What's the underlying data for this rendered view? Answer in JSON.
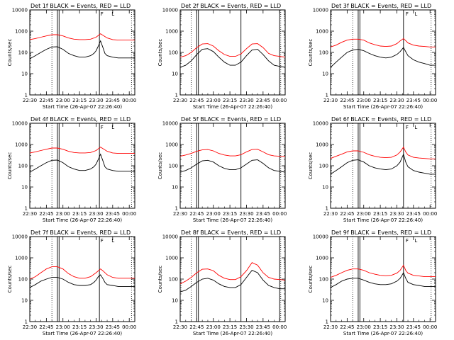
{
  "chart_data": {
    "type": "line",
    "layout": "3x3",
    "ylabel": "Counts/sec",
    "xlabel": "Start Time (26-Apr-07 22:26:40)",
    "x_tick_labels": [
      "22:30",
      "22:45",
      "23:00",
      "23:15",
      "23:30",
      "23:45",
      "00:00"
    ],
    "x_tick_minutes": [
      0,
      15,
      30,
      45,
      60,
      75,
      90
    ],
    "xlim_minutes": [
      0,
      95
    ],
    "y_tick_labels": [
      "1",
      "10",
      "100",
      "1000",
      "10000"
    ],
    "ylim": [
      1,
      10000
    ],
    "yscale": "log",
    "marker_labels": [
      "F",
      "L"
    ],
    "panels": [
      {
        "title": "Det 1f BLACK = Events, RED = LLD",
        "dotted_x": [
          20,
          92
        ],
        "solid_x": [
          25,
          26.5,
          63
        ],
        "f_x": 64,
        "l_x": 74,
        "series": [
          {
            "name": "Events",
            "color": "#000000",
            "x": [
              0,
              5,
              10,
              15,
              20,
              25,
              30,
              35,
              40,
              45,
              50,
              55,
              58,
              60,
              62,
              64,
              66,
              68,
              70,
              75,
              80,
              85,
              90,
              95
            ],
            "y": [
              50,
              70,
              100,
              140,
              180,
              185,
              140,
              90,
              70,
              60,
              60,
              70,
              90,
              120,
              200,
              350,
              180,
              90,
              70,
              60,
              55,
              55,
              55,
              55
            ]
          },
          {
            "name": "LLD",
            "color": "#ff0000",
            "x": [
              0,
              5,
              10,
              15,
              20,
              25,
              30,
              35,
              40,
              45,
              50,
              55,
              60,
              64,
              66,
              70,
              75,
              80,
              85,
              90,
              95
            ],
            "y": [
              400,
              450,
              520,
              600,
              680,
              680,
              600,
              480,
              420,
              400,
              400,
              420,
              520,
              750,
              650,
              480,
              400,
              380,
              380,
              380,
              380
            ]
          }
        ]
      },
      {
        "title": "Det 2f BLACK = Events, RED = LLD",
        "dotted_x": [
          10,
          91
        ],
        "solid_x": [
          15,
          16.5,
          55,
          90
        ],
        "f_x": null,
        "l_x": null,
        "series": [
          {
            "name": "Events",
            "color": "#000000",
            "x": [
              0,
              5,
              10,
              15,
              20,
              25,
              30,
              35,
              40,
              45,
              50,
              55,
              60,
              65,
              70,
              75,
              80,
              85,
              90,
              95
            ],
            "y": [
              20,
              25,
              40,
              80,
              140,
              150,
              110,
              60,
              35,
              25,
              25,
              35,
              70,
              130,
              140,
              80,
              40,
              25,
              22,
              20
            ]
          },
          {
            "name": "LLD",
            "color": "#ff0000",
            "x": [
              0,
              5,
              10,
              15,
              20,
              25,
              30,
              35,
              40,
              45,
              50,
              55,
              60,
              65,
              70,
              75,
              80,
              85,
              90,
              95
            ],
            "y": [
              60,
              70,
              100,
              170,
              250,
              260,
              200,
              120,
              80,
              65,
              65,
              85,
              150,
              250,
              260,
              170,
              90,
              70,
              65,
              60
            ]
          }
        ]
      },
      {
        "title": "Det 3f BLACK = Events, RED = LLD",
        "dotted_x": [
          20,
          91
        ],
        "solid_x": [
          25,
          26.5,
          66
        ],
        "f_x": 68,
        "l_x": 76,
        "series": [
          {
            "name": "Events",
            "color": "#000000",
            "x": [
              0,
              5,
              10,
              15,
              20,
              25,
              30,
              35,
              40,
              45,
              50,
              55,
              60,
              63,
              66,
              68,
              70,
              75,
              80,
              85,
              90,
              95
            ],
            "y": [
              20,
              35,
              60,
              100,
              130,
              140,
              120,
              90,
              70,
              60,
              55,
              60,
              80,
              110,
              170,
              110,
              70,
              45,
              35,
              30,
              25,
              25
            ]
          },
          {
            "name": "LLD",
            "color": "#ff0000",
            "x": [
              0,
              5,
              10,
              15,
              20,
              25,
              30,
              35,
              40,
              45,
              50,
              55,
              60,
              63,
              66,
              68,
              70,
              75,
              80,
              85,
              90,
              95
            ],
            "y": [
              180,
              220,
              300,
              380,
              420,
              420,
              380,
              280,
              230,
              200,
              190,
              200,
              260,
              350,
              450,
              360,
              280,
              220,
              200,
              190,
              180,
              180
            ]
          }
        ]
      },
      {
        "title": "Det 4f BLACK = Events, RED = LLD",
        "dotted_x": [
          20,
          92
        ],
        "solid_x": [
          25,
          26.5,
          63
        ],
        "f_x": 64,
        "l_x": 74,
        "series": [
          {
            "name": "Events",
            "color": "#000000",
            "x": [
              0,
              5,
              10,
              15,
              20,
              25,
              30,
              35,
              40,
              45,
              50,
              55,
              58,
              60,
              62,
              64,
              66,
              68,
              70,
              75,
              80,
              85,
              90,
              95
            ],
            "y": [
              50,
              70,
              100,
              140,
              180,
              185,
              140,
              90,
              70,
              60,
              60,
              70,
              90,
              120,
              200,
              350,
              180,
              90,
              70,
              60,
              55,
              55,
              55,
              55
            ]
          },
          {
            "name": "LLD",
            "color": "#ff0000",
            "x": [
              0,
              5,
              10,
              15,
              20,
              25,
              30,
              35,
              40,
              45,
              50,
              55,
              60,
              64,
              66,
              70,
              75,
              80,
              85,
              90,
              95
            ],
            "y": [
              400,
              450,
              520,
              600,
              680,
              680,
              600,
              480,
              420,
              400,
              400,
              420,
              520,
              750,
              650,
              480,
              400,
              380,
              380,
              380,
              380
            ]
          }
        ]
      },
      {
        "title": "Det 5f BLACK = Events, RED = LLD",
        "dotted_x": [
          10,
          91
        ],
        "solid_x": [
          15,
          16.5,
          55,
          90
        ],
        "f_x": null,
        "l_x": null,
        "series": [
          {
            "name": "Events",
            "color": "#000000",
            "x": [
              0,
              5,
              10,
              15,
              20,
              25,
              30,
              35,
              40,
              45,
              50,
              55,
              60,
              65,
              70,
              75,
              80,
              85,
              90,
              95
            ],
            "y": [
              50,
              60,
              80,
              120,
              170,
              180,
              150,
              100,
              75,
              65,
              65,
              80,
              120,
              180,
              190,
              130,
              80,
              60,
              55,
              50
            ]
          },
          {
            "name": "LLD",
            "color": "#ff0000",
            "x": [
              0,
              5,
              10,
              15,
              20,
              25,
              30,
              35,
              40,
              45,
              50,
              55,
              60,
              65,
              70,
              75,
              80,
              85,
              90,
              95
            ],
            "y": [
              280,
              320,
              380,
              480,
              560,
              580,
              500,
              380,
              320,
              290,
              290,
              330,
              450,
              580,
              600,
              450,
              330,
              290,
              280,
              270
            ]
          }
        ]
      },
      {
        "title": "Det 6f BLACK = Events, RED = LLD",
        "dotted_x": [
          20,
          91
        ],
        "solid_x": [
          25,
          26.5,
          66
        ],
        "f_x": 68,
        "l_x": 76,
        "series": [
          {
            "name": "Events",
            "color": "#000000",
            "x": [
              0,
              5,
              10,
              15,
              20,
              25,
              30,
              35,
              40,
              45,
              50,
              55,
              60,
              63,
              66,
              68,
              70,
              75,
              80,
              85,
              90,
              95
            ],
            "y": [
              40,
              60,
              90,
              140,
              180,
              190,
              150,
              100,
              80,
              70,
              65,
              70,
              100,
              150,
              350,
              150,
              90,
              60,
              50,
              45,
              40,
              40
            ]
          },
          {
            "name": "LLD",
            "color": "#ff0000",
            "x": [
              0,
              5,
              10,
              15,
              20,
              25,
              30,
              35,
              40,
              45,
              50,
              55,
              60,
              63,
              66,
              68,
              70,
              75,
              80,
              85,
              90,
              95
            ],
            "y": [
              220,
              280,
              350,
              450,
              500,
              500,
              430,
              330,
              280,
              250,
              240,
              250,
              320,
              450,
              750,
              450,
              320,
              250,
              230,
              220,
              210,
              210
            ]
          }
        ]
      },
      {
        "title": "Det 7f BLACK = Events, RED = LLD",
        "dotted_x": [
          20,
          92
        ],
        "solid_x": [
          25,
          26.5,
          63
        ],
        "f_x": 64,
        "l_x": 74,
        "series": [
          {
            "name": "Events",
            "color": "#000000",
            "x": [
              0,
              5,
              10,
              15,
              20,
              25,
              30,
              35,
              40,
              45,
              50,
              55,
              58,
              60,
              62,
              64,
              66,
              68,
              70,
              75,
              80,
              85,
              90,
              95
            ],
            "y": [
              40,
              55,
              80,
              100,
              120,
              120,
              100,
              70,
              55,
              50,
              50,
              55,
              70,
              90,
              130,
              160,
              110,
              70,
              55,
              50,
              45,
              45,
              45,
              45
            ]
          },
          {
            "name": "LLD",
            "color": "#ff0000",
            "x": [
              0,
              5,
              10,
              15,
              20,
              25,
              30,
              35,
              40,
              45,
              50,
              55,
              60,
              64,
              66,
              70,
              75,
              80,
              85,
              90,
              95
            ],
            "y": [
              100,
              130,
              200,
              300,
              380,
              380,
              300,
              180,
              130,
              110,
              110,
              130,
              200,
              300,
              250,
              160,
              120,
              110,
              110,
              110,
              110
            ]
          }
        ]
      },
      {
        "title": "Det 8f BLACK = Events, RED = LLD",
        "dotted_x": [
          10,
          91
        ],
        "solid_x": [
          15,
          16.5,
          55,
          90
        ],
        "f_x": null,
        "l_x": null,
        "series": [
          {
            "name": "Events",
            "color": "#000000",
            "x": [
              0,
              5,
              10,
              15,
              20,
              25,
              30,
              35,
              40,
              45,
              50,
              55,
              60,
              65,
              70,
              75,
              80,
              85,
              90,
              95
            ],
            "y": [
              25,
              30,
              45,
              70,
              100,
              110,
              90,
              60,
              45,
              40,
              40,
              55,
              120,
              260,
              200,
              90,
              50,
              40,
              35,
              35
            ]
          },
          {
            "name": "LLD",
            "color": "#ff0000",
            "x": [
              0,
              5,
              10,
              15,
              20,
              25,
              30,
              35,
              40,
              45,
              50,
              55,
              60,
              65,
              70,
              75,
              80,
              85,
              90,
              95
            ],
            "y": [
              60,
              80,
              120,
              200,
              290,
              300,
              250,
              150,
              110,
              95,
              95,
              130,
              250,
              600,
              450,
              200,
              120,
              100,
              95,
              90
            ]
          }
        ]
      },
      {
        "title": "Det 9f BLACK = Events, RED = LLD",
        "dotted_x": [
          20,
          91
        ],
        "solid_x": [
          25,
          26.5,
          66
        ],
        "f_x": 68,
        "l_x": 76,
        "series": [
          {
            "name": "Events",
            "color": "#000000",
            "x": [
              0,
              5,
              10,
              15,
              20,
              25,
              30,
              35,
              40,
              45,
              50,
              55,
              60,
              63,
              66,
              68,
              70,
              75,
              80,
              85,
              90,
              95
            ],
            "y": [
              40,
              55,
              80,
              100,
              110,
              110,
              90,
              70,
              60,
              55,
              55,
              60,
              80,
              110,
              200,
              110,
              70,
              55,
              50,
              45,
              45,
              45
            ]
          },
          {
            "name": "LLD",
            "color": "#ff0000",
            "x": [
              0,
              5,
              10,
              15,
              20,
              25,
              30,
              35,
              40,
              45,
              50,
              55,
              60,
              63,
              66,
              68,
              70,
              75,
              80,
              85,
              90,
              95
            ],
            "y": [
              120,
              150,
              200,
              260,
              300,
              300,
              260,
              200,
              170,
              150,
              145,
              150,
              190,
              260,
              450,
              260,
              190,
              150,
              140,
              130,
              130,
              130
            ]
          }
        ]
      }
    ]
  }
}
